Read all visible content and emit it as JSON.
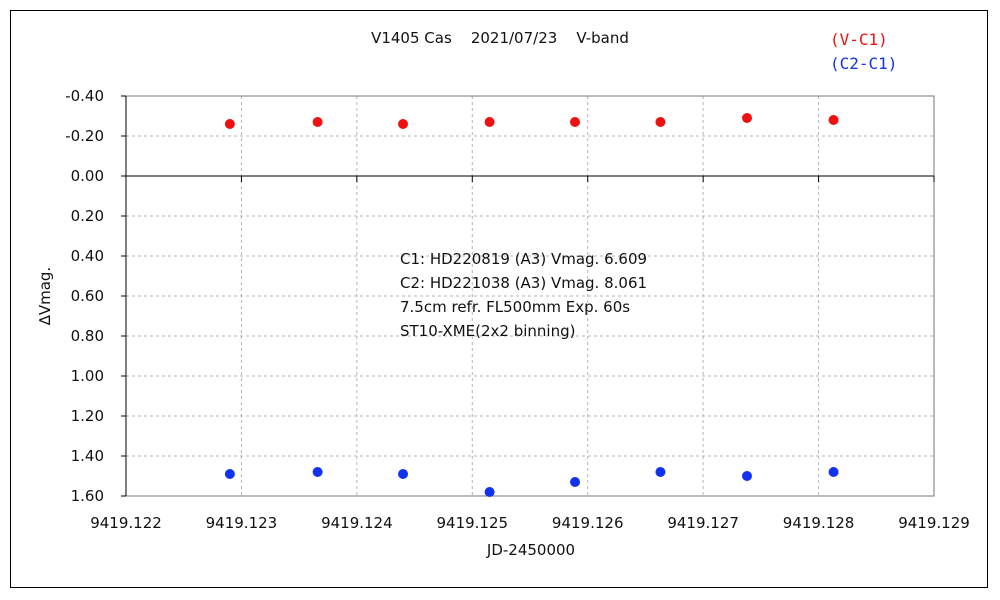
{
  "chart_data": {
    "type": "scatter",
    "title": "V1405 Cas    2021/07/23    V-band",
    "xlabel": "JD-2450000",
    "ylabel": "∆Vmag.",
    "xlim": [
      9419.122,
      9419.129
    ],
    "ylim": [
      -0.4,
      1.6
    ],
    "y_inverted": true,
    "grid": true,
    "legend_position": "top-right",
    "x_ticks": [
      "9419.122",
      "9419.123",
      "9419.124",
      "9419.125",
      "9419.126",
      "9419.127",
      "9419.128",
      "9419.129"
    ],
    "y_ticks": [
      "-0.40",
      "-0.20",
      "0.00",
      "0.20",
      "0.40",
      "0.60",
      "0.80",
      "1.00",
      "1.20",
      "1.40",
      "1.60"
    ],
    "x_tick_values": [
      9419.122,
      9419.123,
      9419.124,
      9419.125,
      9419.126,
      9419.127,
      9419.128,
      9419.129
    ],
    "y_tick_values": [
      -0.4,
      -0.2,
      0.0,
      0.2,
      0.4,
      0.6,
      0.8,
      1.0,
      1.2,
      1.4,
      1.6
    ],
    "series": [
      {
        "name": "(V-C1)",
        "color": "#ee1111",
        "x": [
          9419.1229,
          9419.12366,
          9419.1244,
          9419.12515,
          9419.12589,
          9419.12663,
          9419.12738,
          9419.12813
        ],
        "y": [
          -0.26,
          -0.27,
          -0.26,
          -0.27,
          -0.27,
          -0.27,
          -0.29,
          -0.28
        ]
      },
      {
        "name": "(C2-C1)",
        "color": "#1133ee",
        "x": [
          9419.1229,
          9419.12366,
          9419.1244,
          9419.12515,
          9419.12589,
          9419.12663,
          9419.12738,
          9419.12813
        ],
        "y": [
          1.49,
          1.48,
          1.49,
          1.58,
          1.53,
          1.48,
          1.5,
          1.48
        ]
      }
    ],
    "annotations": [
      "C1: HD220819 (A3) Vmag. 6.609",
      "C2: HD221038 (A3) Vmag. 8.061",
      "7.5cm refr. FL500mm Exp. 60s",
      "ST10-XME(2x2 binning)"
    ]
  }
}
